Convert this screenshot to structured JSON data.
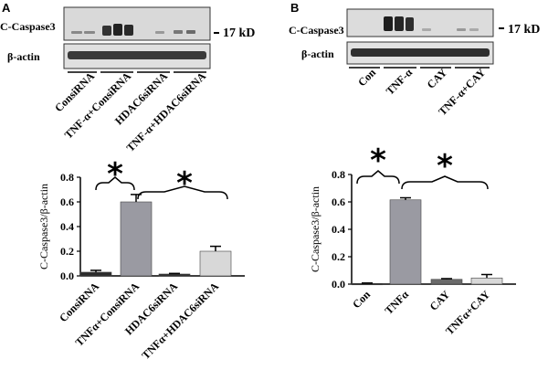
{
  "figure": {
    "panel_a": {
      "letter": "A",
      "blot": {
        "row1_label": "C-Caspase3",
        "row2_label": "β-actin",
        "marker": "17 kD",
        "lanes": [
          "ConsiRNA",
          "TNF-α+ConsiRNA",
          "HDAC6siRNA",
          "TNF-α+HDAC6siRNA"
        ]
      }
    },
    "panel_b": {
      "letter": "B",
      "blot": {
        "row1_label": "C-Caspase3",
        "row2_label": "β-actin",
        "marker": "17 kD",
        "lanes": [
          "Con",
          "TNF-α",
          "CAY",
          "TNF-α+CAY"
        ]
      }
    }
  },
  "chart_data": [
    {
      "type": "bar",
      "panel": "A",
      "title": "",
      "xlabel": "",
      "ylabel": "C-Caspase3/β-actin",
      "categories": [
        "ConsiRNA",
        "TNFα+ConsiRNA",
        "HDAC6siRNA",
        "TNFα+HDAC6siRNA"
      ],
      "values": [
        0.03,
        0.6,
        0.015,
        0.2
      ],
      "errors": [
        0.015,
        0.06,
        0.005,
        0.04
      ],
      "colors": [
        "#2b2b2b",
        "#9a9aa2",
        "#2b2b2b",
        "#d8d8d8"
      ],
      "yticks": [
        "0.0",
        "0.2",
        "0.4",
        "0.6",
        "0.8"
      ],
      "ylim": [
        0,
        0.8
      ],
      "significance": [
        "*",
        "*"
      ]
    },
    {
      "type": "bar",
      "panel": "B",
      "title": "",
      "xlabel": "",
      "ylabel": "C-Caspase3/β-actin",
      "categories": [
        "Con",
        "TNFα",
        "CAY",
        "TNFα+CAY"
      ],
      "values": [
        0.005,
        0.615,
        0.035,
        0.045
      ],
      "errors": [
        0.003,
        0.015,
        0.005,
        0.025
      ],
      "colors": [
        "#2b2b2b",
        "#9a9aa2",
        "#6a6a6a",
        "#d8d8d8"
      ],
      "yticks": [
        "0.0",
        "0.2",
        "0.4",
        "0.6",
        "0.8"
      ],
      "ylim": [
        0,
        0.8
      ],
      "significance": [
        "*",
        "*"
      ]
    }
  ]
}
